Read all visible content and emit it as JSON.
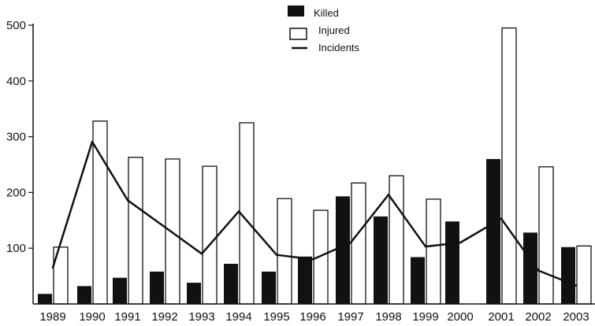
{
  "chart_data": {
    "type": "bar",
    "categories": [
      "1989",
      "1990",
      "1991",
      "1992",
      "1993",
      "1994",
      "1995",
      "1996",
      "1997",
      "1998",
      "1999",
      "2000",
      "2001",
      "2002",
      "2003"
    ],
    "series": [
      {
        "name": "Killed",
        "kind": "bar",
        "color": "#111111",
        "values": [
          18,
          32,
          47,
          58,
          38,
          72,
          58,
          85,
          193,
          157,
          84,
          148,
          260,
          128,
          102
        ]
      },
      {
        "name": "Injured",
        "kind": "bar",
        "color": "#ffffff",
        "values": [
          102,
          328,
          263,
          260,
          247,
          325,
          189,
          168,
          217,
          230,
          188,
          null,
          495,
          246,
          104
        ]
      },
      {
        "name": "Incidents",
        "kind": "line",
        "color": "#111111",
        "values": [
          65,
          291,
          186,
          138,
          90,
          166,
          88,
          80,
          110,
          196,
          103,
          110,
          153,
          60,
          33
        ]
      }
    ],
    "title": "",
    "xlabel": "",
    "ylabel": "",
    "ylim": [
      0,
      500
    ],
    "yticks": [
      100,
      200,
      300,
      400,
      500
    ],
    "grid": false,
    "legend": "top-center"
  }
}
